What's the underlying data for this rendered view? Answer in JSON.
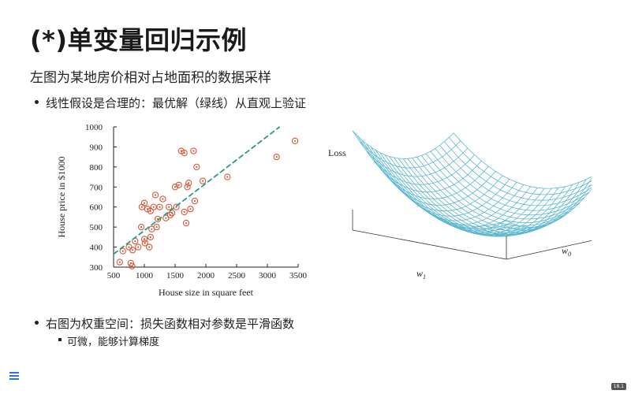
{
  "slide": {
    "title": "(*)单变量回归示例",
    "subtitle": "左图为某地房价相对占地面积的数据采样",
    "bullet1": "线性假设是合理的：最优解（绿线）从直观上验证",
    "bullet2": "右图为权重空间：损失函数相对参数是平滑函数",
    "sub_bullet": "可微，能够计算梯度",
    "page_number": "18.1"
  },
  "surface_plot": {
    "z_label": "Loss",
    "x_label": "w",
    "x_label_sub": "1",
    "y_label": "w",
    "y_label_sub": "0",
    "color": "#5bb7cf"
  },
  "chart_data": {
    "type": "scatter",
    "xlabel": "House size in square feet",
    "ylabel": "House price in $1000",
    "xlim": [
      500,
      3500
    ],
    "ylim": [
      300,
      1000
    ],
    "xticks": [
      "500",
      "1000",
      "1500",
      "2000",
      "2500",
      "3000",
      "3500"
    ],
    "yticks": [
      "300",
      "400",
      "500",
      "600",
      "700",
      "800",
      "900",
      "1000"
    ],
    "point_color": "#d4583c",
    "fit_line_color": "#2e9b78",
    "fit_line": {
      "x": [
        500,
        3200
      ],
      "y": [
        365,
        1000
      ]
    },
    "points": [
      [
        600,
        325
      ],
      [
        650,
        380
      ],
      [
        750,
        400
      ],
      [
        780,
        320
      ],
      [
        800,
        305
      ],
      [
        810,
        385
      ],
      [
        850,
        430
      ],
      [
        900,
        400
      ],
      [
        950,
        500
      ],
      [
        960,
        600
      ],
      [
        1000,
        620
      ],
      [
        1000,
        440
      ],
      [
        1010,
        420
      ],
      [
        1050,
        590
      ],
      [
        1080,
        400
      ],
      [
        1100,
        450
      ],
      [
        1100,
        580
      ],
      [
        1120,
        490
      ],
      [
        1150,
        600
      ],
      [
        1180,
        660
      ],
      [
        1200,
        500
      ],
      [
        1220,
        540
      ],
      [
        1250,
        600
      ],
      [
        1300,
        640
      ],
      [
        1350,
        545
      ],
      [
        1400,
        600
      ],
      [
        1420,
        560
      ],
      [
        1450,
        570
      ],
      [
        1500,
        700
      ],
      [
        1520,
        600
      ],
      [
        1560,
        710
      ],
      [
        1600,
        880
      ],
      [
        1650,
        870
      ],
      [
        1650,
        575
      ],
      [
        1680,
        520
      ],
      [
        1700,
        700
      ],
      [
        1720,
        720
      ],
      [
        1750,
        590
      ],
      [
        1800,
        880
      ],
      [
        1820,
        630
      ],
      [
        1850,
        800
      ],
      [
        1950,
        730
      ],
      [
        2350,
        750
      ],
      [
        3150,
        850
      ],
      [
        3450,
        930
      ]
    ]
  }
}
